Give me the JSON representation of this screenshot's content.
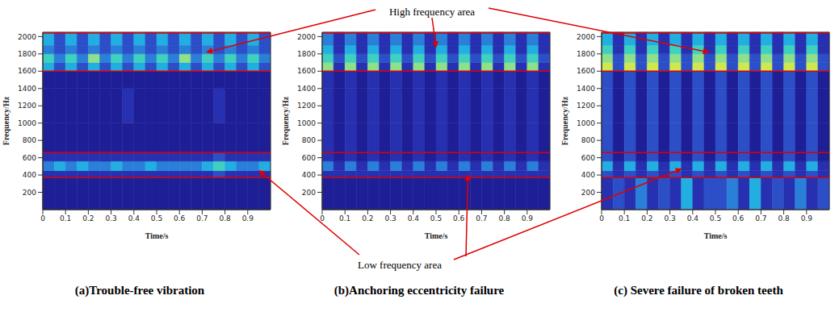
{
  "annotations": {
    "top": "High frequency area",
    "bottom": "Low frequency area"
  },
  "chart_data": [
    {
      "type": "heatmap",
      "title": "(a)Trouble-free vibration",
      "x_label": "Time/s",
      "y_label": "Frequency/Hz",
      "xlim": [
        0,
        1
      ],
      "xticks": [
        0,
        0.1,
        0.2,
        0.3,
        0.4,
        0.5,
        0.6,
        0.7,
        0.8,
        0.9
      ],
      "ylim": [
        0,
        2050
      ],
      "yticks": [
        200,
        400,
        600,
        800,
        1000,
        1200,
        1400,
        1600,
        1800,
        2000
      ],
      "x_bins": [
        0,
        0.05,
        0.1,
        0.15,
        0.2,
        0.25,
        0.3,
        0.35,
        0.4,
        0.45,
        0.5,
        0.55,
        0.6,
        0.65,
        0.7,
        0.75,
        0.8,
        0.85,
        0.9,
        0.95,
        1
      ],
      "y_bins": [
        0,
        370,
        450,
        560,
        660,
        1000,
        1400,
        1600,
        1700,
        1800,
        1900,
        2050
      ],
      "zlim": [
        0,
        9
      ],
      "high_frequency_area": [
        1600,
        2040
      ],
      "low_frequency_area": [
        370,
        660
      ],
      "cells": [
        [
          1,
          1,
          1,
          1,
          1,
          1,
          1,
          1,
          1,
          1,
          1,
          1,
          1,
          1,
          1,
          1,
          1,
          1,
          1,
          1
        ],
        [
          2,
          2,
          2,
          2,
          2,
          2,
          2,
          2,
          2,
          2,
          2,
          2,
          2,
          2,
          2,
          3,
          2,
          2,
          2,
          2
        ],
        [
          4,
          5,
          4,
          5,
          4,
          4,
          5,
          4,
          4,
          5,
          4,
          4,
          4,
          4,
          5,
          6,
          5,
          4,
          4,
          5
        ],
        [
          2,
          2,
          2,
          2,
          2,
          2,
          2,
          2,
          2,
          2,
          2,
          2,
          2,
          2,
          2,
          3,
          2,
          2,
          2,
          2
        ],
        [
          1,
          1,
          1,
          1,
          1,
          1,
          1,
          1,
          1,
          1,
          1,
          1,
          1,
          1,
          1,
          1,
          1,
          1,
          1,
          1
        ],
        [
          1,
          1,
          1,
          1,
          1,
          1,
          1,
          2,
          1,
          1,
          1,
          1,
          1,
          1,
          1,
          2,
          1,
          1,
          1,
          1
        ],
        [
          1,
          1,
          1,
          1,
          1,
          1,
          1,
          1,
          1,
          1,
          1,
          1,
          1,
          1,
          1,
          1,
          1,
          1,
          1,
          1
        ],
        [
          5,
          3,
          5,
          3,
          5,
          3,
          5,
          3,
          5,
          3,
          5,
          3,
          5,
          3,
          5,
          3,
          5,
          3,
          5,
          3
        ],
        [
          6,
          4,
          6,
          4,
          7,
          4,
          6,
          4,
          6,
          4,
          6,
          4,
          7,
          4,
          6,
          4,
          6,
          4,
          6,
          4
        ],
        [
          4,
          3,
          4,
          3,
          4,
          3,
          4,
          3,
          4,
          3,
          4,
          3,
          4,
          3,
          4,
          3,
          4,
          3,
          4,
          3
        ],
        [
          5,
          3,
          5,
          3,
          5,
          3,
          5,
          3,
          5,
          3,
          5,
          3,
          5,
          3,
          5,
          3,
          5,
          3,
          5,
          3
        ]
      ]
    },
    {
      "type": "heatmap",
      "title": "(b)Anchoring eccentricity failure",
      "x_label": "Time/s",
      "y_label": "Frequency/Hz",
      "xlim": [
        0,
        1
      ],
      "xticks": [
        0,
        0.1,
        0.2,
        0.3,
        0.4,
        0.5,
        0.6,
        0.7,
        0.8,
        0.9
      ],
      "ylim": [
        0,
        2050
      ],
      "yticks": [
        200,
        400,
        600,
        800,
        1000,
        1200,
        1400,
        1600,
        1800,
        2000
      ],
      "x_bins": [
        0,
        0.05,
        0.1,
        0.15,
        0.2,
        0.25,
        0.3,
        0.35,
        0.4,
        0.45,
        0.5,
        0.55,
        0.6,
        0.65,
        0.7,
        0.75,
        0.8,
        0.85,
        0.9,
        0.95,
        1
      ],
      "y_bins": [
        0,
        370,
        450,
        560,
        660,
        1000,
        1400,
        1600,
        1700,
        1800,
        1900,
        2050
      ],
      "zlim": [
        0,
        9
      ],
      "high_frequency_area": [
        1600,
        2040
      ],
      "low_frequency_area": [
        370,
        660
      ],
      "cells": [
        [
          1,
          1,
          1,
          1,
          1,
          1,
          1,
          1,
          1,
          1,
          1,
          1,
          1,
          1,
          1,
          1,
          1,
          1,
          1,
          1
        ],
        [
          2,
          2,
          2,
          2,
          2,
          2,
          2,
          2,
          2,
          2,
          2,
          2,
          2,
          2,
          2,
          2,
          2,
          2,
          2,
          2
        ],
        [
          4,
          2,
          4,
          2,
          4,
          2,
          4,
          2,
          4,
          2,
          4,
          2,
          4,
          2,
          4,
          2,
          4,
          2,
          4,
          2
        ],
        [
          2,
          1,
          2,
          1,
          2,
          1,
          2,
          1,
          2,
          1,
          2,
          1,
          2,
          1,
          2,
          1,
          2,
          1,
          2,
          1
        ],
        [
          2,
          1,
          2,
          1,
          2,
          1,
          2,
          1,
          2,
          1,
          2,
          1,
          2,
          1,
          2,
          1,
          2,
          1,
          2,
          1
        ],
        [
          2,
          1,
          2,
          1,
          2,
          1,
          2,
          1,
          2,
          1,
          2,
          1,
          2,
          1,
          2,
          1,
          2,
          1,
          2,
          1
        ],
        [
          2,
          1,
          2,
          1,
          2,
          1,
          2,
          1,
          2,
          1,
          2,
          1,
          2,
          1,
          2,
          1,
          2,
          1,
          2,
          1
        ],
        [
          7,
          2,
          7,
          2,
          7,
          2,
          7,
          2,
          7,
          2,
          7,
          2,
          7,
          2,
          7,
          2,
          7,
          2,
          7,
          2
        ],
        [
          6,
          3,
          6,
          3,
          6,
          3,
          6,
          3,
          6,
          3,
          6,
          3,
          6,
          3,
          6,
          3,
          6,
          3,
          6,
          3
        ],
        [
          5,
          2,
          5,
          2,
          5,
          2,
          5,
          2,
          5,
          2,
          5,
          2,
          5,
          2,
          5,
          2,
          5,
          2,
          5,
          2
        ],
        [
          4,
          2,
          4,
          2,
          4,
          2,
          4,
          2,
          4,
          2,
          4,
          2,
          4,
          2,
          4,
          2,
          4,
          2,
          4,
          2
        ]
      ]
    },
    {
      "type": "heatmap",
      "title": "(c) Severe failure of broken teeth",
      "x_label": "Time/s",
      "y_label": "Frequency/Hz",
      "xlim": [
        0,
        1
      ],
      "xticks": [
        0,
        0.1,
        0.2,
        0.3,
        0.4,
        0.5,
        0.6,
        0.7,
        0.8,
        0.9
      ],
      "ylim": [
        0,
        2050
      ],
      "yticks": [
        200,
        400,
        600,
        800,
        1000,
        1200,
        1400,
        1600,
        1800,
        2000
      ],
      "x_bins": [
        0,
        0.05,
        0.1,
        0.15,
        0.2,
        0.25,
        0.3,
        0.35,
        0.4,
        0.45,
        0.5,
        0.55,
        0.6,
        0.65,
        0.7,
        0.75,
        0.8,
        0.85,
        0.9,
        0.95,
        1
      ],
      "y_bins": [
        0,
        370,
        450,
        560,
        660,
        1000,
        1400,
        1600,
        1700,
        1800,
        1900,
        2050
      ],
      "zlim": [
        0,
        9
      ],
      "high_frequency_area": [
        1600,
        2040
      ],
      "low_frequency_area": [
        370,
        660
      ],
      "cells": [
        [
          2,
          3,
          2,
          4,
          2,
          3,
          2,
          5,
          2,
          3,
          3,
          4,
          2,
          5,
          2,
          3,
          2,
          4,
          2,
          3
        ],
        [
          3,
          2,
          3,
          2,
          3,
          2,
          3,
          2,
          3,
          2,
          3,
          2,
          3,
          2,
          3,
          2,
          3,
          2,
          3,
          2
        ],
        [
          5,
          2,
          5,
          2,
          5,
          2,
          5,
          2,
          5,
          2,
          5,
          2,
          5,
          2,
          5,
          2,
          5,
          2,
          5,
          2
        ],
        [
          3,
          1,
          3,
          1,
          3,
          1,
          3,
          1,
          3,
          1,
          3,
          1,
          3,
          1,
          3,
          1,
          3,
          1,
          3,
          1
        ],
        [
          3,
          1,
          3,
          1,
          3,
          1,
          3,
          1,
          3,
          1,
          3,
          1,
          3,
          1,
          3,
          1,
          3,
          1,
          3,
          1
        ],
        [
          3,
          1,
          3,
          1,
          3,
          1,
          3,
          1,
          3,
          1,
          3,
          1,
          3,
          1,
          3,
          1,
          3,
          1,
          3,
          1
        ],
        [
          3,
          1,
          3,
          1,
          3,
          1,
          3,
          1,
          3,
          1,
          3,
          1,
          3,
          1,
          3,
          1,
          3,
          1,
          3,
          1
        ],
        [
          8,
          3,
          8,
          3,
          8,
          3,
          8,
          3,
          8,
          3,
          8,
          3,
          8,
          3,
          8,
          3,
          8,
          3,
          8,
          3
        ],
        [
          7,
          3,
          7,
          3,
          7,
          3,
          7,
          3,
          7,
          3,
          7,
          3,
          7,
          3,
          7,
          3,
          7,
          3,
          7,
          3
        ],
        [
          6,
          2,
          6,
          2,
          6,
          2,
          6,
          2,
          6,
          2,
          6,
          2,
          6,
          2,
          6,
          2,
          6,
          2,
          6,
          2
        ],
        [
          5,
          2,
          5,
          2,
          5,
          2,
          5,
          2,
          5,
          2,
          5,
          2,
          5,
          2,
          5,
          2,
          5,
          2,
          5,
          2
        ]
      ]
    }
  ]
}
